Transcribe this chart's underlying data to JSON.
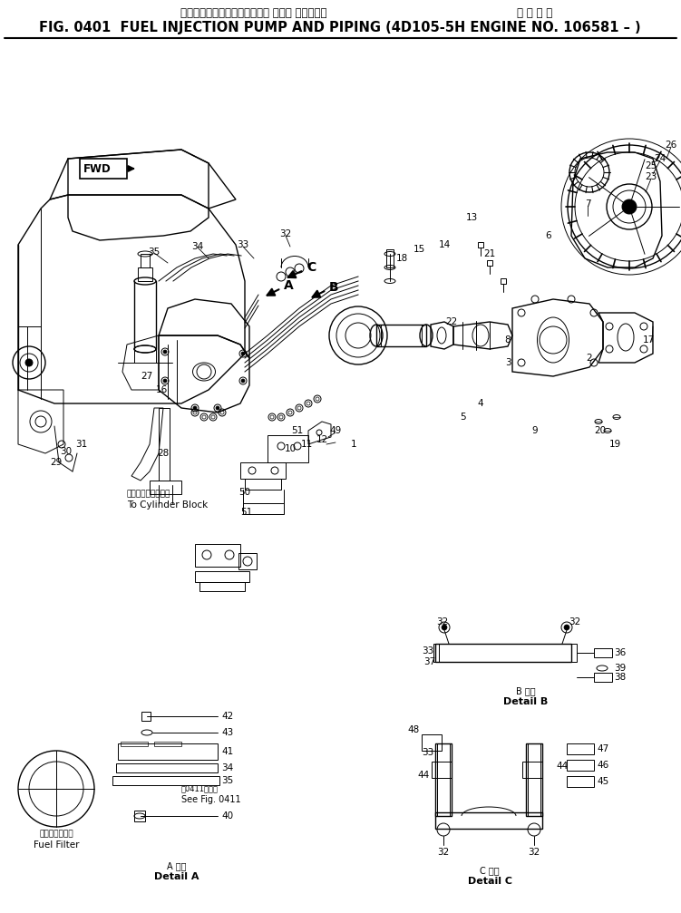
{
  "title_jp": "フェルインジェクションポンプ および パイピング",
  "title_jp2": "適 用 号 機",
  "title_en": "FIG. 0401  FUEL INJECTION PUMP AND PIPING (4D105-5H ENGINE NO. 106581 – )",
  "bg_color": "#ffffff",
  "line_color": "#000000",
  "detail_a_jp": "A 詳細",
  "detail_a_en": "Detail A",
  "detail_b_jp": "B 詳細",
  "detail_b_en": "Detail B",
  "detail_c_jp": "C 詳細",
  "detail_c_en": "Detail C",
  "to_cylinder_jp": "シリンダブロックへ",
  "to_cylinder_en": "To Cylinder Block",
  "fuel_filter_jp": "フェルフィルタ",
  "fuel_filter_en": "Fuel Filter",
  "see_fig_jp": "第0411図参照",
  "see_fig_en": "See Fig. 0411",
  "fwd_label": "FWD"
}
